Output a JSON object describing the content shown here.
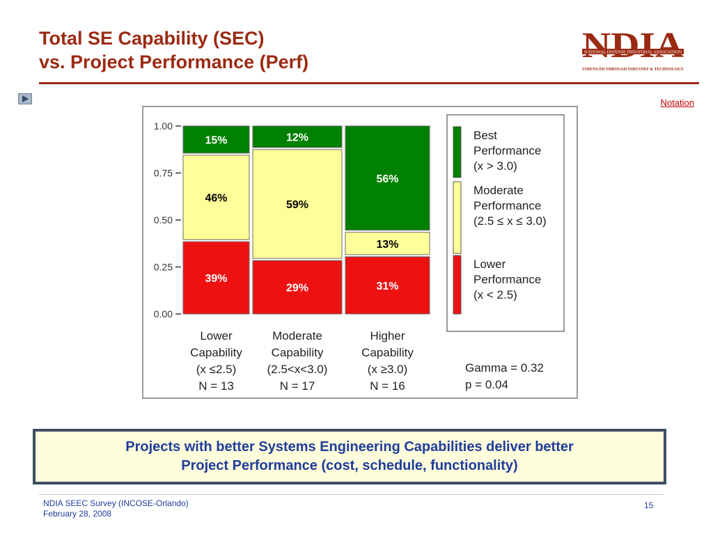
{
  "slide": {
    "title_line1": "Total SE Capability (SEC)",
    "title_line2": "vs. Project Performance (Perf)",
    "notation_link": "Notation",
    "play_icon": "play-icon",
    "colors": {
      "title": "#9b2a12",
      "best": "#008000",
      "moderate": "#ffff99",
      "lower": "#ee1111",
      "message_text": "#1f3c9a",
      "message_bg": "#fefedd",
      "message_border": "#3d4f63"
    }
  },
  "logo": {
    "text": "NDIA",
    "line1": "NATIONAL DEFENSE INDUSTRIAL ASSOCIATION",
    "line2": "STRENGTH THROUGH INDUSTRY & TECHNOLOGY"
  },
  "message": {
    "line1": "Projects with better Systems Engineering Capabilities deliver better",
    "line2": "Project Performance (cost, schedule, functionality)"
  },
  "footer": {
    "line1": "NDIA SEEC Survey (INCOSE-Orlando)",
    "line2": "February 28, 2008",
    "page": "15"
  },
  "chart_data": {
    "type": "mosaic",
    "ylim": [
      0,
      1
    ],
    "yticks": [
      "0.00",
      "0.25",
      "0.50",
      "0.75",
      "1.00"
    ],
    "categories": [
      {
        "name": [
          "Lower",
          "Capability",
          "(x ≤2.5)",
          "N = 13"
        ],
        "n": 13,
        "lower": 39,
        "moderate": 46,
        "best": 15
      },
      {
        "name": [
          "Moderate",
          "Capability",
          "(2.5<x<3.0)",
          "N = 17"
        ],
        "n": 17,
        "lower": 29,
        "moderate": 59,
        "best": 12
      },
      {
        "name": [
          "Higher",
          "Capability",
          "(x ≥3.0)",
          "N = 16"
        ],
        "n": 16,
        "lower": 31,
        "moderate": 13,
        "best": 56
      }
    ],
    "series": [
      {
        "key": "lower",
        "name": "Lower Performance (x < 2.5)",
        "label": [
          "Lower",
          "Performance",
          "(x < 2.5)"
        ],
        "color": "#ee1111"
      },
      {
        "key": "moderate",
        "name": "Moderate Performance (2.5 ≤ x ≤ 3.0)",
        "label": [
          "Moderate",
          "Performance",
          "(2.5 ≤ x ≤ 3.0)"
        ],
        "color": "#ffff99"
      },
      {
        "key": "best",
        "name": "Best Performance (x > 3.0)",
        "label": [
          "Best",
          "Performance",
          "(x > 3.0)"
        ],
        "color": "#008000"
      }
    ],
    "stats": [
      "Gamma = 0.32",
      "p = 0.04"
    ],
    "legend_position": "right"
  }
}
